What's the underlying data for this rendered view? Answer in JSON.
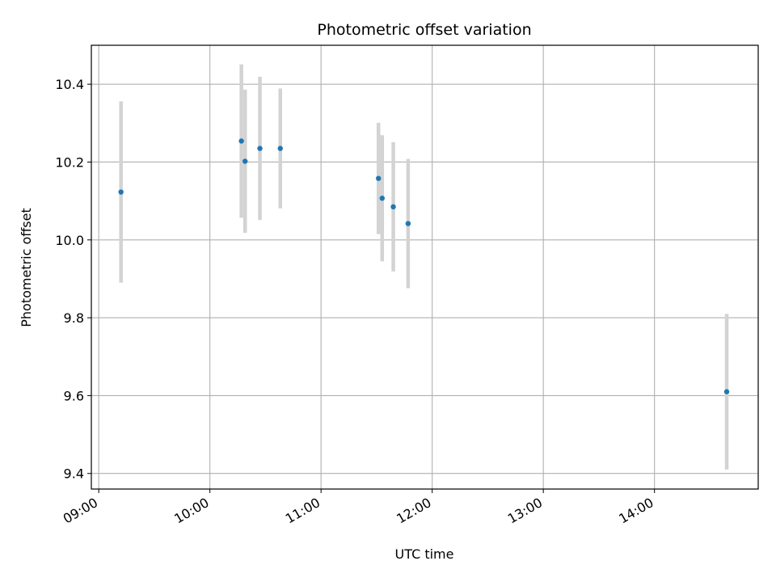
{
  "chart_data": {
    "type": "scatter",
    "title": "Photometric offset variation",
    "xlabel": "UTC time",
    "ylabel": "Photometric offset",
    "xlim": [
      "08:56",
      "14:56"
    ],
    "ylim": [
      9.36,
      10.5
    ],
    "x_ticks": [
      "09:00",
      "10:00",
      "11:00",
      "12:00",
      "13:00",
      "14:00"
    ],
    "y_ticks": [
      9.4,
      9.6,
      9.8,
      10.0,
      10.2,
      10.4
    ],
    "y_tick_labels": [
      "9.4",
      "9.6",
      "9.8",
      "10.0",
      "10.2",
      "10.4"
    ],
    "grid": true,
    "marker_color": "#1f77b4",
    "errorbar_color": "#d3d3d3",
    "points": [
      {
        "x": "09:12",
        "y": 10.123,
        "err": 0.233
      },
      {
        "x": "10:17",
        "y": 10.254,
        "err": 0.197
      },
      {
        "x": "10:19",
        "y": 10.202,
        "err": 0.184
      },
      {
        "x": "10:27",
        "y": 10.235,
        "err": 0.184
      },
      {
        "x": "10:38",
        "y": 10.235,
        "err": 0.154
      },
      {
        "x": "11:31",
        "y": 10.158,
        "err": 0.143
      },
      {
        "x": "11:33",
        "y": 10.107,
        "err": 0.162
      },
      {
        "x": "11:39",
        "y": 10.085,
        "err": 0.166
      },
      {
        "x": "11:47",
        "y": 10.042,
        "err": 0.166
      },
      {
        "x": "14:39",
        "y": 9.61,
        "err": 0.2
      }
    ]
  }
}
